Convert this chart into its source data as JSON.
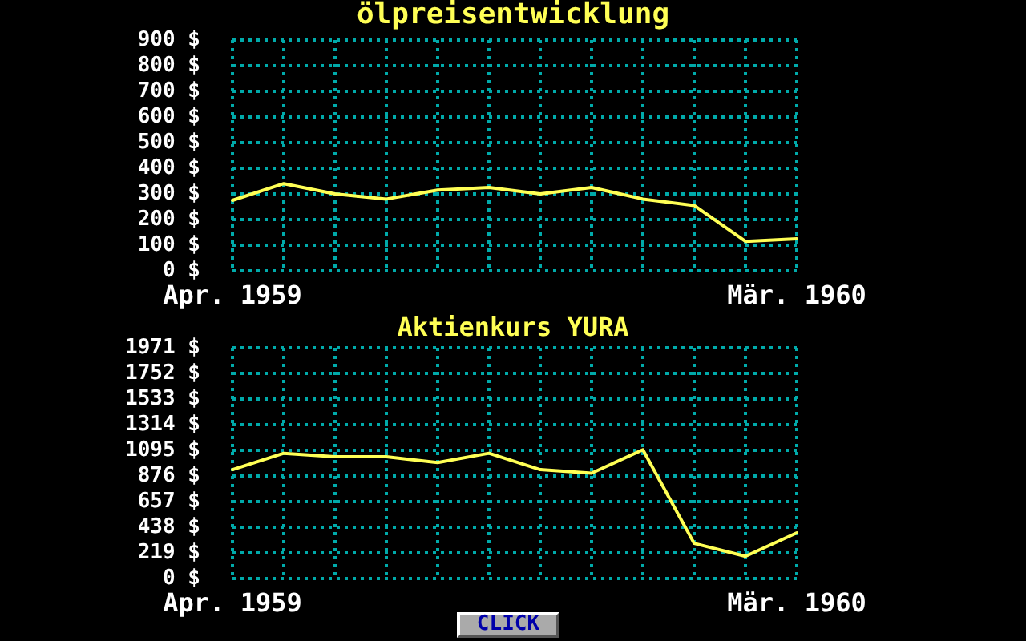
{
  "chart_data": [
    {
      "type": "line",
      "title": "ölpreisentwicklung",
      "categories": [
        "Apr. 1959",
        null,
        null,
        null,
        null,
        null,
        null,
        null,
        null,
        null,
        null,
        "Mär. 1960"
      ],
      "values": [
        275,
        340,
        300,
        280,
        315,
        325,
        300,
        325,
        280,
        255,
        115,
        125
      ],
      "color": "#ffff55",
      "ylim": [
        0,
        900
      ],
      "yticks": [
        {
          "value": 0,
          "label": "0 $"
        },
        {
          "value": 100,
          "label": "100 $"
        },
        {
          "value": 200,
          "label": "200 $"
        },
        {
          "value": 300,
          "label": "300 $"
        },
        {
          "value": 400,
          "label": "400 $"
        },
        {
          "value": 500,
          "label": "500 $"
        },
        {
          "value": 600,
          "label": "600 $"
        },
        {
          "value": 700,
          "label": "700 $"
        },
        {
          "value": 800,
          "label": "800 $"
        },
        {
          "value": 900,
          "label": "900 $"
        }
      ],
      "grid": true,
      "marker": "none"
    },
    {
      "type": "line",
      "title": "Aktienkurs YURA",
      "categories": [
        "Apr. 1959",
        null,
        null,
        null,
        null,
        null,
        null,
        null,
        null,
        null,
        null,
        "Mär. 1960"
      ],
      "values": [
        930,
        1070,
        1040,
        1040,
        990,
        1070,
        930,
        900,
        1100,
        300,
        190,
        390
      ],
      "color": "#ffff55",
      "ylim": [
        0,
        1971
      ],
      "yticks": [
        {
          "value": 0,
          "label": "0 $"
        },
        {
          "value": 219,
          "label": "219 $"
        },
        {
          "value": 438,
          "label": "438 $"
        },
        {
          "value": 657,
          "label": "657 $"
        },
        {
          "value": 876,
          "label": "876 $"
        },
        {
          "value": 1095,
          "label": "1095 $"
        },
        {
          "value": 1314,
          "label": "1314 $"
        },
        {
          "value": 1533,
          "label": "1533 $"
        },
        {
          "value": 1752,
          "label": "1752 $"
        },
        {
          "value": 1971,
          "label": "1971 $"
        }
      ],
      "grid": true,
      "marker": "none",
      "annotations": [
        "CLICK"
      ]
    }
  ]
}
